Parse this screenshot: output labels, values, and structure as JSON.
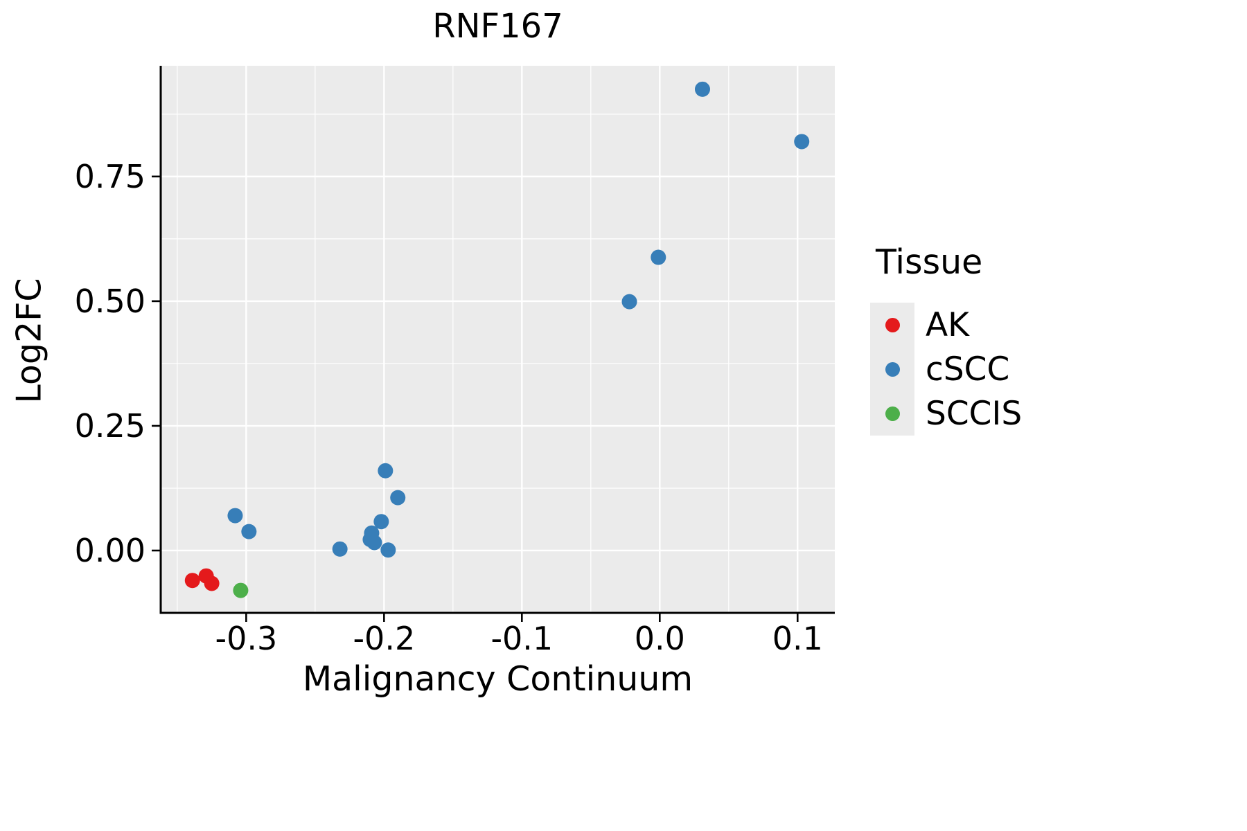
{
  "title": "RNF167",
  "axes": {
    "x": {
      "label": "Malignancy Continuum",
      "ticks": [
        -0.3,
        -0.2,
        -0.1,
        0.0,
        0.1
      ],
      "tick_labels": [
        "-0.3",
        "-0.2",
        "-0.1",
        "0.0",
        "0.1"
      ],
      "minor_ticks": [
        -0.35,
        -0.25,
        -0.15,
        -0.05,
        0.05
      ]
    },
    "y": {
      "label": "Log2FC",
      "ticks": [
        0.0,
        0.25,
        0.5,
        0.75
      ],
      "tick_labels": [
        "0.00",
        "0.25",
        "0.50",
        "0.75"
      ],
      "minor_ticks": [
        0.125,
        0.375,
        0.625,
        0.875
      ]
    }
  },
  "legend": {
    "title": "Tissue",
    "items": [
      {
        "label": "AK",
        "color": "#e41a1c"
      },
      {
        "label": "cSCC",
        "color": "#377eb8"
      },
      {
        "label": "SCCIS",
        "color": "#4daf4a"
      }
    ]
  },
  "style": {
    "panel_background": "#ebebeb",
    "grid_color": "#ffffff",
    "axis_color": "#000000"
  },
  "chart_data": {
    "type": "scatter",
    "title": "RNF167",
    "xlabel": "Malignancy Continuum",
    "ylabel": "Log2FC",
    "xlim": [
      -0.362,
      0.127
    ],
    "ylim": [
      -0.125,
      0.972
    ],
    "grid": true,
    "legend_position": "right",
    "series": [
      {
        "name": "AK",
        "color": "#e41a1c",
        "points": [
          [
            -0.339,
            -0.06
          ],
          [
            -0.329,
            -0.051
          ],
          [
            -0.325,
            -0.066
          ]
        ]
      },
      {
        "name": "cSCC",
        "color": "#377eb8",
        "points": [
          [
            -0.308,
            0.07
          ],
          [
            -0.298,
            0.038
          ],
          [
            -0.232,
            0.003
          ],
          [
            -0.21,
            0.022
          ],
          [
            -0.209,
            0.035
          ],
          [
            -0.207,
            0.016
          ],
          [
            -0.202,
            0.058
          ],
          [
            -0.199,
            0.16
          ],
          [
            -0.197,
            0.001
          ],
          [
            -0.19,
            0.106
          ],
          [
            -0.022,
            0.499
          ],
          [
            -0.001,
            0.588
          ],
          [
            0.031,
            0.925
          ],
          [
            0.103,
            0.82
          ]
        ]
      },
      {
        "name": "SCCIS",
        "color": "#4daf4a",
        "points": [
          [
            -0.304,
            -0.08
          ]
        ]
      }
    ]
  }
}
